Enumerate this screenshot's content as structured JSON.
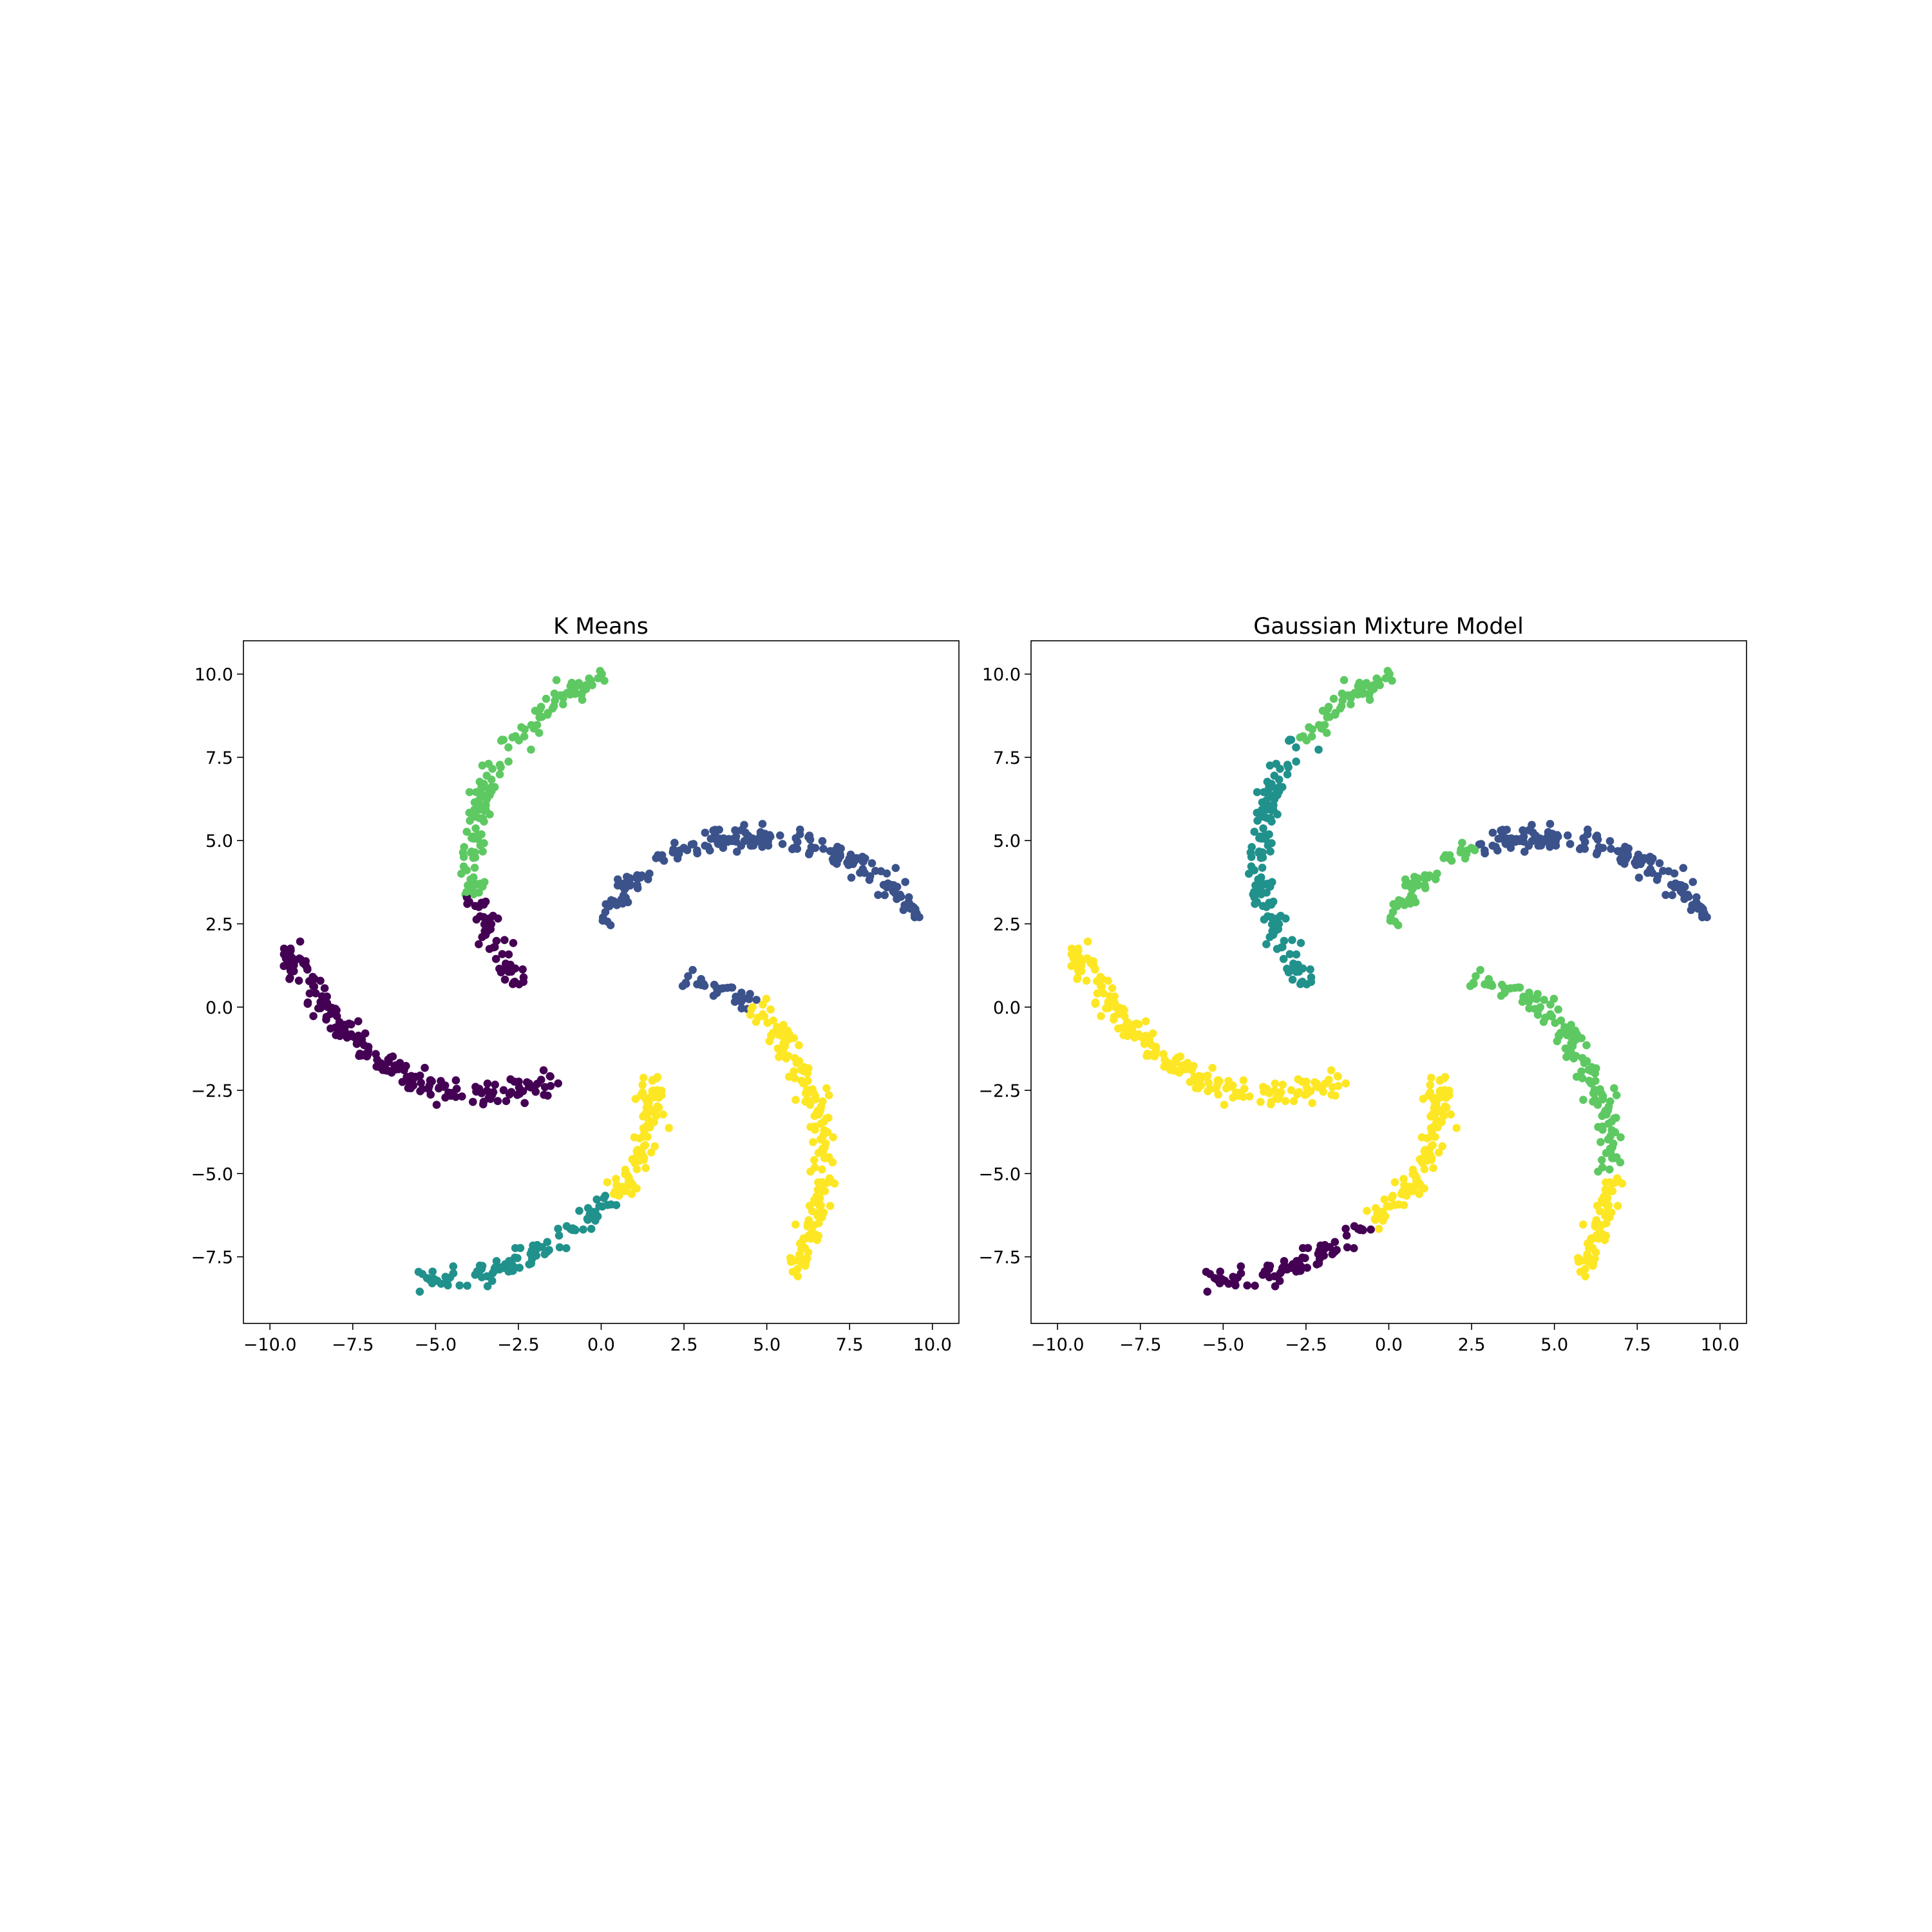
{
  "colors": {
    "c0": "#440154",
    "c1": "#3b528b",
    "c2": "#21918c",
    "c3": "#5ec962",
    "c4": "#fde725"
  },
  "chart_data": [
    {
      "type": "scatter",
      "title": "K Means",
      "xlabel": "",
      "ylabel": "",
      "xlim": [
        -10.8,
        10.8
      ],
      "ylim": [
        -9.5,
        11.0
      ],
      "xticks": [
        -10.0,
        -7.5,
        -5.0,
        -2.5,
        0.0,
        2.5,
        5.0,
        7.5,
        10.0
      ],
      "xtick_labels": [
        "−10.0",
        "−7.5",
        "−5.0",
        "−2.5",
        "0.0",
        "2.5",
        "5.0",
        "7.5",
        "10.0"
      ],
      "yticks": [
        -7.5,
        -5.0,
        -2.5,
        0.0,
        2.5,
        5.0,
        7.5,
        10.0
      ],
      "ytick_labels": [
        "−7.5",
        "−5.0",
        "−2.5",
        "0.0",
        "2.5",
        "5.0",
        "7.5",
        "10.0"
      ],
      "grid": false,
      "arms": [
        {
          "points": [
            [
              -9.6,
              1.8
            ],
            [
              -9.2,
              1.2
            ],
            [
              -8.6,
              0.4
            ],
            [
              -8.0,
              -0.4
            ],
            [
              -7.2,
              -1.2
            ],
            [
              -6.2,
              -1.9
            ],
            [
              -5.2,
              -2.4
            ],
            [
              -4.2,
              -2.6
            ],
            [
              -3.2,
              -2.6
            ],
            [
              -2.2,
              -2.4
            ],
            [
              -1.4,
              -2.2
            ]
          ],
          "segments": [
            {
              "from": 0.0,
              "to": 1.0,
              "color": "c0"
            }
          ]
        },
        {
          "points": [
            [
              0.0,
              2.6
            ],
            [
              0.5,
              3.3
            ],
            [
              1.2,
              4.0
            ],
            [
              2.2,
              4.6
            ],
            [
              3.5,
              5.0
            ],
            [
              5.0,
              5.1
            ],
            [
              6.5,
              4.8
            ],
            [
              7.8,
              4.3
            ],
            [
              8.8,
              3.7
            ],
            [
              9.6,
              2.5
            ]
          ],
          "segments": [
            {
              "from": 0.0,
              "to": 1.0,
              "color": "c1"
            }
          ]
        },
        {
          "points": [
            [
              -2.5,
              0.6
            ],
            [
              -3.0,
              1.5
            ],
            [
              -3.6,
              2.5
            ],
            [
              -3.9,
              3.6
            ],
            [
              -3.9,
              4.8
            ],
            [
              -3.7,
              5.8
            ],
            [
              -3.2,
              7.0
            ],
            [
              -2.5,
              8.1
            ],
            [
              -1.6,
              9.0
            ],
            [
              -0.5,
              9.8
            ],
            [
              0.2,
              9.9
            ]
          ],
          "segments": [
            {
              "from": 0.0,
              "to": 0.27,
              "color": "c0"
            },
            {
              "from": 0.27,
              "to": 1.0,
              "color": "c3"
            }
          ]
        },
        {
          "points": [
            [
              2.5,
              0.9
            ],
            [
              3.5,
              0.6
            ],
            [
              4.5,
              0.1
            ],
            [
              5.4,
              -0.8
            ],
            [
              6.1,
              -1.9
            ],
            [
              6.6,
              -3.2
            ],
            [
              6.8,
              -4.5
            ],
            [
              6.6,
              -5.8
            ],
            [
              6.3,
              -7.0
            ],
            [
              5.7,
              -8.0
            ]
          ],
          "segments": [
            {
              "from": 0.0,
              "to": 0.2,
              "color": "c1"
            },
            {
              "from": 0.2,
              "to": 1.0,
              "color": "c4"
            }
          ]
        },
        {
          "points": [
            [
              -5.6,
              -8.2
            ],
            [
              -4.5,
              -8.2
            ],
            [
              -3.2,
              -7.9
            ],
            [
              -1.9,
              -7.4
            ],
            [
              -0.8,
              -6.7
            ],
            [
              0.2,
              -5.9
            ],
            [
              0.9,
              -5.0
            ],
            [
              1.3,
              -4.0
            ],
            [
              1.5,
              -3.0
            ],
            [
              1.6,
              -2.0
            ]
          ],
          "segments": [
            {
              "from": 0.0,
              "to": 0.62,
              "color": "c2"
            },
            {
              "from": 0.62,
              "to": 1.0,
              "color": "c4"
            }
          ]
        }
      ]
    },
    {
      "type": "scatter",
      "title": "Gaussian Mixture Model",
      "xlabel": "",
      "ylabel": "",
      "xlim": [
        -10.8,
        10.8
      ],
      "ylim": [
        -9.5,
        11.0
      ],
      "xticks": [
        -10.0,
        -7.5,
        -5.0,
        -2.5,
        0.0,
        2.5,
        5.0,
        7.5,
        10.0
      ],
      "xtick_labels": [
        "−10.0",
        "−7.5",
        "−5.0",
        "−2.5",
        "0.0",
        "2.5",
        "5.0",
        "7.5",
        "10.0"
      ],
      "yticks": [
        -7.5,
        -5.0,
        -2.5,
        0.0,
        2.5,
        5.0,
        7.5,
        10.0
      ],
      "ytick_labels": [
        "−7.5",
        "−5.0",
        "−2.5",
        "0.0",
        "2.5",
        "5.0",
        "7.5",
        "10.0"
      ],
      "grid": false,
      "arms": [
        {
          "points": [
            [
              -9.6,
              1.8
            ],
            [
              -9.2,
              1.2
            ],
            [
              -8.6,
              0.4
            ],
            [
              -8.0,
              -0.4
            ],
            [
              -7.2,
              -1.2
            ],
            [
              -6.2,
              -1.9
            ],
            [
              -5.2,
              -2.4
            ],
            [
              -4.2,
              -2.6
            ],
            [
              -3.2,
              -2.6
            ],
            [
              -2.2,
              -2.4
            ],
            [
              -1.4,
              -2.2
            ]
          ],
          "segments": [
            {
              "from": 0.0,
              "to": 1.0,
              "color": "c4"
            }
          ]
        },
        {
          "points": [
            [
              0.0,
              2.6
            ],
            [
              0.5,
              3.3
            ],
            [
              1.2,
              4.0
            ],
            [
              2.2,
              4.6
            ],
            [
              3.5,
              5.0
            ],
            [
              5.0,
              5.1
            ],
            [
              6.5,
              4.8
            ],
            [
              7.8,
              4.3
            ],
            [
              8.8,
              3.7
            ],
            [
              9.6,
              2.5
            ]
          ],
          "segments": [
            {
              "from": 0.0,
              "to": 0.3,
              "color": "c3"
            },
            {
              "from": 0.3,
              "to": 1.0,
              "color": "c1"
            }
          ]
        },
        {
          "points": [
            [
              -2.5,
              0.6
            ],
            [
              -3.0,
              1.5
            ],
            [
              -3.6,
              2.5
            ],
            [
              -3.9,
              3.6
            ],
            [
              -3.9,
              4.8
            ],
            [
              -3.7,
              5.8
            ],
            [
              -3.2,
              7.0
            ],
            [
              -2.5,
              8.1
            ],
            [
              -1.6,
              9.0
            ],
            [
              -0.5,
              9.8
            ],
            [
              0.2,
              9.9
            ]
          ],
          "segments": [
            {
              "from": 0.0,
              "to": 0.7,
              "color": "c2"
            },
            {
              "from": 0.7,
              "to": 1.0,
              "color": "c3"
            }
          ]
        },
        {
          "points": [
            [
              2.5,
              0.9
            ],
            [
              3.5,
              0.6
            ],
            [
              4.5,
              0.1
            ],
            [
              5.4,
              -0.8
            ],
            [
              6.1,
              -1.9
            ],
            [
              6.6,
              -3.2
            ],
            [
              6.8,
              -4.5
            ],
            [
              6.6,
              -5.8
            ],
            [
              6.3,
              -7.0
            ],
            [
              5.7,
              -8.0
            ]
          ],
          "segments": [
            {
              "from": 0.0,
              "to": 0.72,
              "color": "c3"
            },
            {
              "from": 0.72,
              "to": 1.0,
              "color": "c4"
            }
          ]
        },
        {
          "points": [
            [
              -5.6,
              -8.2
            ],
            [
              -4.5,
              -8.2
            ],
            [
              -3.2,
              -7.9
            ],
            [
              -1.9,
              -7.4
            ],
            [
              -0.8,
              -6.7
            ],
            [
              0.2,
              -5.9
            ],
            [
              0.9,
              -5.0
            ],
            [
              1.3,
              -4.0
            ],
            [
              1.5,
              -3.0
            ],
            [
              1.6,
              -2.0
            ]
          ],
          "segments": [
            {
              "from": 0.0,
              "to": 0.5,
              "color": "c0"
            },
            {
              "from": 0.5,
              "to": 1.0,
              "color": "c4"
            }
          ]
        }
      ]
    }
  ]
}
